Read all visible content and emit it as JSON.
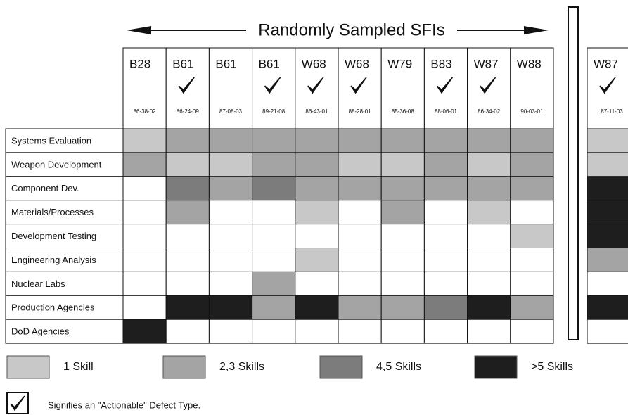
{
  "header": {
    "title": "Randomly Sampled SFIs"
  },
  "columns": [
    {
      "name": "B28",
      "code": "86-38-02",
      "actionable": false
    },
    {
      "name": "B61",
      "code": "86-24-09",
      "actionable": true
    },
    {
      "name": "B61",
      "code": "87-08-03",
      "actionable": false
    },
    {
      "name": "B61",
      "code": "89-21-08",
      "actionable": true
    },
    {
      "name": "W68",
      "code": "86-43-01",
      "actionable": true
    },
    {
      "name": "W68",
      "code": "88-28-01",
      "actionable": true
    },
    {
      "name": "W79",
      "code": "85-36-08",
      "actionable": false
    },
    {
      "name": "B83",
      "code": "88-06-01",
      "actionable": true
    },
    {
      "name": "W87",
      "code": "86-34-02",
      "actionable": true
    },
    {
      "name": "W88",
      "code": "90-03-01",
      "actionable": false
    }
  ],
  "extra_column": {
    "name": "W87",
    "code": "87-11-03",
    "actionable": true
  },
  "rows": [
    {
      "label": "Systems Evaluation",
      "cells": [
        "#c8c8c8",
        "#a4a4a4",
        "#a4a4a4",
        "#a4a4a4",
        "#a4a4a4",
        "#a4a4a4",
        "#a4a4a4",
        "#a4a4a4",
        "#a4a4a4",
        "#a4a4a4"
      ],
      "extra": "#c8c8c8"
    },
    {
      "label": "Weapon Development",
      "cells": [
        "#a4a4a4",
        "#c8c8c8",
        "#c8c8c8",
        "#a4a4a4",
        "#a4a4a4",
        "#c8c8c8",
        "#c8c8c8",
        "#a4a4a4",
        "#c8c8c8",
        "#a4a4a4"
      ],
      "extra": "#c8c8c8"
    },
    {
      "label": "Component Dev.",
      "cells": [
        null,
        "#7c7c7c",
        "#a4a4a4",
        "#7c7c7c",
        "#a4a4a4",
        "#a4a4a4",
        "#a4a4a4",
        "#a4a4a4",
        "#a4a4a4",
        "#a4a4a4"
      ],
      "extra": "#1e1e1e"
    },
    {
      "label": "Materials/Processes",
      "cells": [
        null,
        "#a4a4a4",
        null,
        null,
        "#c8c8c8",
        null,
        "#a4a4a4",
        null,
        "#c8c8c8",
        null
      ],
      "extra": "#1e1e1e"
    },
    {
      "label": "Development Testing",
      "cells": [
        null,
        null,
        null,
        null,
        null,
        null,
        null,
        null,
        null,
        "#c8c8c8"
      ],
      "extra": "#1e1e1e"
    },
    {
      "label": "Engineering Analysis",
      "cells": [
        null,
        null,
        null,
        null,
        "#c8c8c8",
        null,
        null,
        null,
        null,
        null
      ],
      "extra": "#a4a4a4"
    },
    {
      "label": "Nuclear Labs",
      "cells": [
        null,
        null,
        null,
        "#a4a4a4",
        null,
        null,
        null,
        null,
        null,
        null
      ],
      "extra": null
    },
    {
      "label": "Production Agencies",
      "cells": [
        null,
        "#1e1e1e",
        "#1e1e1e",
        "#a4a4a4",
        "#1e1e1e",
        "#a4a4a4",
        "#a4a4a4",
        "#7c7c7c",
        "#1e1e1e",
        "#a4a4a4"
      ],
      "extra": "#1e1e1e"
    },
    {
      "label": "DoD Agencies",
      "cells": [
        "#1e1e1e",
        null,
        null,
        null,
        null,
        null,
        null,
        null,
        null,
        null
      ],
      "extra": null
    }
  ],
  "legend": [
    {
      "label": "1 Skill",
      "color": "#c8c8c8"
    },
    {
      "label": "2,3 Skills",
      "color": "#a4a4a4"
    },
    {
      "label": "4,5 Skills",
      "color": "#7c7c7c"
    },
    {
      "label": ">5 Skills",
      "color": "#1e1e1e"
    }
  ],
  "note": "Signifies an \"Actionable\" Defect Type."
}
